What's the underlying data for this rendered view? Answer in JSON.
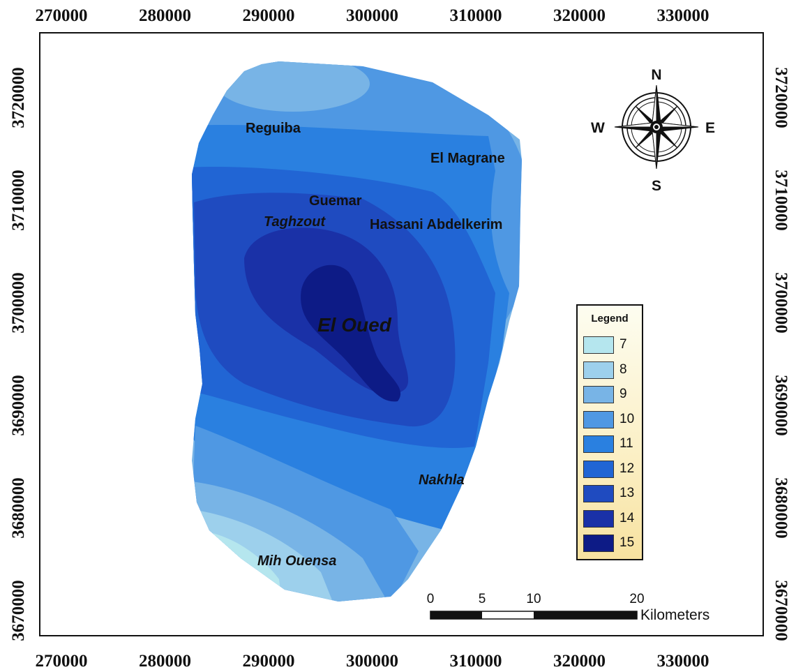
{
  "x_axis": {
    "ticks": [
      "270000",
      "280000",
      "290000",
      "300000",
      "310000",
      "320000",
      "330000"
    ]
  },
  "y_axis": {
    "ticks": [
      "3720000",
      "3710000",
      "3700000",
      "3690000",
      "3680000",
      "3670000"
    ]
  },
  "places": {
    "reguiba": "Reguiba",
    "el_magrane": "El Magrane",
    "guemar": "Guemar",
    "taghzout": "Taghzout",
    "hassani": "Hassani Abdelkerim",
    "el_oued": "El Oued",
    "nakhla": "Nakhla",
    "mih_ouensa": "Mih Ouensa"
  },
  "compass": {
    "n": "N",
    "s": "S",
    "e": "E",
    "w": "W"
  },
  "scale_bar": {
    "labels": [
      "0",
      "5",
      "10",
      "20"
    ],
    "unit": "Kilometers"
  },
  "legend": {
    "title": "Legend",
    "items": [
      {
        "label": "7",
        "color": "#b5e6ee"
      },
      {
        "label": "8",
        "color": "#9dd0ec"
      },
      {
        "label": "9",
        "color": "#78b4e6"
      },
      {
        "label": "10",
        "color": "#4f98e3"
      },
      {
        "label": "11",
        "color": "#2a80e0"
      },
      {
        "label": "12",
        "color": "#2165d4"
      },
      {
        "label": "13",
        "color": "#1f4bc0"
      },
      {
        "label": "14",
        "color": "#1a31a7"
      },
      {
        "label": "15",
        "color": "#0d1b86"
      }
    ]
  }
}
